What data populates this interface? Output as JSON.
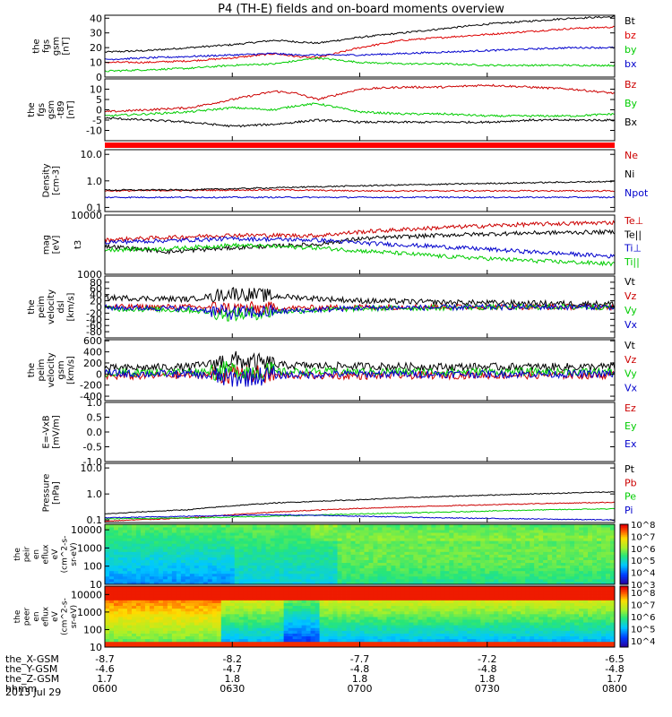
{
  "title": "P4 (TH-E) fields and on-board moments overview",
  "date_label": "2013 Jul 29",
  "chart_data": {
    "type": "line",
    "title": "P4 (TH-E) fields and on-board moments overview",
    "x": {
      "label": "hhmm",
      "ticks": [
        "0600",
        "0630",
        "0700",
        "0730",
        "0800"
      ],
      "range_minutes": [
        0,
        120
      ],
      "ephemeris": [
        {
          "label": "the_X-GSM",
          "values": [
            "-8.7",
            "-8.2",
            "-7.7",
            "-7.2",
            "-6.5"
          ]
        },
        {
          "label": "the_Y-GSM",
          "values": [
            "-4.6",
            "-4.7",
            "-4.8",
            "-4.8",
            "-4.8"
          ]
        },
        {
          "label": "the_Z-GSM",
          "values": [
            "1.7",
            "1.8",
            "1.8",
            "1.8",
            "1.7"
          ]
        }
      ]
    },
    "panels": [
      {
        "id": "fgs-gsm",
        "ylabel": [
          "the",
          "fgs",
          "gsm",
          "[nT]"
        ],
        "scale": "linear",
        "ylim": [
          0,
          42
        ],
        "ticks": [
          "0",
          "10",
          "20",
          "30",
          "40"
        ],
        "tick_values": [
          0,
          10,
          20,
          30,
          40
        ],
        "series": [
          {
            "name": "Bt",
            "color": "#000000",
            "t": [
              0,
              10,
              20,
              30,
              40,
              45,
              50,
              60,
              70,
              80,
              90,
              100,
              110,
              120
            ],
            "values": [
              17,
              18,
              20,
              22,
              25,
              24,
              23,
              27,
              30,
              33,
              36,
              38,
              40,
              41
            ]
          },
          {
            "name": "bz",
            "color": "#dd0000",
            "t": [
              0,
              10,
              20,
              30,
              40,
              45,
              50,
              60,
              70,
              80,
              90,
              100,
              110,
              120
            ],
            "values": [
              10,
              10,
              11,
              13,
              16,
              14,
              13,
              20,
              25,
              27,
              29,
              31,
              33,
              34
            ]
          },
          {
            "name": "by",
            "color": "#00cc00",
            "t": [
              0,
              10,
              20,
              30,
              40,
              45,
              50,
              60,
              70,
              80,
              90,
              100,
              110,
              120
            ],
            "values": [
              4,
              5,
              6,
              8,
              9,
              11,
              13,
              10,
              9,
              9,
              8,
              8,
              8,
              8
            ]
          },
          {
            "name": "bx",
            "color": "#0000cc",
            "t": [
              0,
              10,
              20,
              30,
              40,
              45,
              50,
              60,
              70,
              80,
              90,
              100,
              110,
              120
            ],
            "values": [
              12,
              13,
              14,
              15,
              16,
              15,
              15,
              15,
              16,
              17,
              18,
              19,
              20,
              20
            ]
          }
        ]
      },
      {
        "id": "fgs-gsm-t89",
        "ylabel": [
          "the",
          "fgs",
          "gsm",
          "-t89",
          "[nT]"
        ],
        "scale": "linear",
        "ylim": [
          -15,
          15
        ],
        "ticks": [
          "-10",
          "-5",
          "0",
          "5",
          "10"
        ],
        "tick_values": [
          -10,
          -5,
          0,
          5,
          10
        ],
        "series": [
          {
            "name": "Bz",
            "color": "#cc0000",
            "t": [
              0,
              10,
              20,
              30,
              40,
              45,
              50,
              60,
              70,
              80,
              90,
              100,
              110,
              120
            ],
            "values": [
              -1,
              0,
              1,
              5,
              9,
              8,
              5,
              10,
              11,
              11,
              12,
              11,
              10,
              8
            ]
          },
          {
            "name": "By",
            "color": "#00cc00",
            "t": [
              0,
              10,
              20,
              30,
              40,
              45,
              50,
              60,
              70,
              80,
              90,
              100,
              110,
              120
            ],
            "values": [
              -3,
              -2,
              -1,
              1,
              0,
              2,
              3,
              -1,
              -2,
              -2,
              -3,
              -3,
              -3,
              -2
            ]
          },
          {
            "name": "Bx",
            "color": "#000000",
            "t": [
              0,
              10,
              20,
              30,
              40,
              45,
              50,
              60,
              70,
              80,
              90,
              100,
              110,
              120
            ],
            "values": [
              -4,
              -5,
              -6,
              -8,
              -7,
              -6,
              -5,
              -6,
              -6,
              -6,
              -6,
              -5,
              -5,
              -5
            ]
          }
        ]
      },
      {
        "id": "density",
        "ylabel": [
          "Density",
          "[cm-3]"
        ],
        "scale": "log",
        "ylim": [
          0.07,
          15
        ],
        "ticks": [
          "0.1",
          "1.0",
          "10.0"
        ],
        "tick_values": [
          0.1,
          1.0,
          10.0
        ],
        "series": [
          {
            "name": "Ne",
            "color": "#cc0000",
            "t": [
              0,
              20,
              40,
              60,
              80,
              100,
              120
            ],
            "values": [
              0.42,
              0.44,
              0.46,
              0.42,
              0.42,
              0.42,
              0.42
            ]
          },
          {
            "name": "Ni",
            "color": "#000000",
            "t": [
              0,
              20,
              40,
              60,
              80,
              100,
              120
            ],
            "values": [
              0.45,
              0.46,
              0.55,
              0.65,
              0.75,
              0.85,
              0.95
            ]
          },
          {
            "name": "Npot",
            "color": "#0000cc",
            "t": [
              0,
              20,
              40,
              60,
              80,
              100,
              120
            ],
            "values": [
              0.24,
              0.24,
              0.24,
              0.24,
              0.24,
              0.24,
              0.24
            ]
          }
        ]
      },
      {
        "id": "temperature",
        "ylabel": [
          "mag",
          "[eV]"
        ],
        "ylabel_extra": "t3",
        "scale": "log",
        "ylim": [
          1000,
          10000
        ],
        "ticks": [
          "1000",
          "10000"
        ],
        "tick_values": [
          1000,
          10000
        ],
        "series": [
          {
            "name": "Te⊥",
            "color": "#cc0000",
            "t": [
              0,
              15,
              30,
              50,
              60,
              80,
              100,
              120
            ],
            "values": [
              3800,
              4200,
              4600,
              4500,
              5200,
              6200,
              7000,
              7500
            ]
          },
          {
            "name": "Te||",
            "color": "#000000",
            "t": [
              0,
              15,
              30,
              50,
              60,
              80,
              100,
              120
            ],
            "values": [
              3000,
              2400,
              2800,
              3200,
              4000,
              4600,
              5000,
              5200
            ]
          },
          {
            "name": "Ti⊥",
            "color": "#0000cc",
            "t": [
              0,
              15,
              30,
              50,
              60,
              80,
              100,
              120
            ],
            "values": [
              3500,
              3700,
              4000,
              3800,
              3400,
              2900,
              2400,
              2000
            ]
          },
          {
            "name": "Ti||",
            "color": "#00cc00",
            "t": [
              0,
              15,
              30,
              50,
              60,
              80,
              100,
              120
            ],
            "values": [
              2600,
              2700,
              3100,
              2800,
              2500,
              2000,
              1700,
              1500
            ]
          }
        ]
      },
      {
        "id": "velocity-dsl",
        "ylabel": [
          "the",
          "peim",
          "velocity",
          "dsl",
          "[km/s]"
        ],
        "scale": "linear",
        "ylim": [
          -100,
          100
        ],
        "ticks": [
          "-80",
          "-60",
          "-40",
          "-20",
          "0",
          "20",
          "40",
          "60",
          "80"
        ],
        "tick_values": [
          -80,
          -60,
          -40,
          -20,
          0,
          20,
          40,
          60,
          80
        ],
        "series": [
          {
            "name": "Vt",
            "color": "#000000",
            "t": [
              0,
              20,
              30,
              40,
              60,
              80,
              100,
              120
            ],
            "values": [
              30,
              25,
              45,
              35,
              20,
              15,
              12,
              10
            ]
          },
          {
            "name": "Vz",
            "color": "#cc0000",
            "t": [
              0,
              20,
              30,
              40,
              60,
              80,
              100,
              120
            ],
            "values": [
              0,
              0,
              -5,
              -5,
              0,
              0,
              0,
              0
            ]
          },
          {
            "name": "Vy",
            "color": "#00cc00",
            "t": [
              0,
              20,
              30,
              40,
              60,
              80,
              100,
              120
            ],
            "values": [
              -5,
              -10,
              -25,
              -15,
              -5,
              -2,
              0,
              0
            ]
          },
          {
            "name": "Vx",
            "color": "#0000cc",
            "t": [
              0,
              20,
              30,
              40,
              60,
              80,
              100,
              120
            ],
            "values": [
              -2,
              -5,
              -20,
              -15,
              -3,
              -2,
              0,
              0
            ]
          }
        ]
      },
      {
        "id": "velocity-gsm",
        "ylabel": [
          "the",
          "peim",
          "velocity",
          "gsm",
          "[km/s]"
        ],
        "scale": "linear",
        "ylim": [
          -480,
          620
        ],
        "ticks": [
          "-400",
          "-200",
          "0",
          "200",
          "400",
          "600"
        ],
        "tick_values": [
          -400,
          -200,
          0,
          200,
          400,
          600
        ],
        "series": [
          {
            "name": "Vt",
            "color": "#000000",
            "t": [
              0,
              20,
              30,
              40,
              60,
              80,
              100,
              120
            ],
            "values": [
              100,
              130,
              250,
              160,
              140,
              130,
              130,
              130
            ]
          },
          {
            "name": "Vz",
            "color": "#cc0000",
            "t": [
              0,
              20,
              30,
              40,
              60,
              80,
              100,
              120
            ],
            "values": [
              -40,
              -20,
              0,
              -20,
              -30,
              -20,
              -20,
              -20
            ]
          },
          {
            "name": "Vy",
            "color": "#00cc00",
            "t": [
              0,
              20,
              30,
              40,
              60,
              80,
              100,
              120
            ],
            "values": [
              20,
              40,
              60,
              40,
              40,
              40,
              40,
              40
            ]
          },
          {
            "name": "Vx",
            "color": "#0000cc",
            "t": [
              0,
              20,
              30,
              40,
              60,
              80,
              100,
              120
            ],
            "values": [
              10,
              0,
              -80,
              -20,
              0,
              0,
              0,
              0
            ]
          }
        ]
      },
      {
        "id": "efield",
        "ylabel": [
          "E=-VxB",
          "[mV/m]"
        ],
        "scale": "linear",
        "ylim": [
          -1,
          1
        ],
        "ticks": [
          "-1.0",
          "-0.5",
          "0.0",
          "0.5",
          "1.0"
        ],
        "tick_values": [
          -1,
          -0.5,
          0,
          0.5,
          1
        ],
        "series": [
          {
            "name": "Ez",
            "color": "#cc0000",
            "t": [],
            "values": []
          },
          {
            "name": "Ey",
            "color": "#00cc00",
            "t": [],
            "values": []
          },
          {
            "name": "Ex",
            "color": "#0000cc",
            "t": [],
            "values": []
          }
        ]
      },
      {
        "id": "pressure",
        "ylabel": [
          "Pressure",
          "[nPa]"
        ],
        "scale": "log",
        "ylim": [
          0.08,
          15
        ],
        "ticks": [
          "0.1",
          "1.0",
          "10.0"
        ],
        "tick_values": [
          0.1,
          1.0,
          10.0
        ],
        "series": [
          {
            "name": "Pt",
            "color": "#000000",
            "t": [
              0,
              20,
              40,
              60,
              80,
              100,
              120
            ],
            "values": [
              0.17,
              0.25,
              0.45,
              0.6,
              0.8,
              1.0,
              1.2
            ]
          },
          {
            "name": "Pb",
            "color": "#cc0000",
            "t": [
              0,
              20,
              40,
              60,
              80,
              100,
              120
            ],
            "values": [
              0.09,
              0.12,
              0.2,
              0.28,
              0.35,
              0.42,
              0.48
            ]
          },
          {
            "name": "Pe",
            "color": "#00cc00",
            "t": [
              0,
              20,
              40,
              60,
              80,
              100,
              120
            ],
            "values": [
              0.11,
              0.12,
              0.14,
              0.17,
              0.2,
              0.24,
              0.27
            ]
          },
          {
            "name": "Pi",
            "color": "#0000cc",
            "t": [
              0,
              20,
              40,
              60,
              80,
              100,
              120
            ],
            "values": [
              0.12,
              0.14,
              0.16,
              0.14,
              0.12,
              0.11,
              0.1
            ]
          }
        ]
      }
    ],
    "spectrograms": [
      {
        "id": "ion-energy-flux",
        "type": "heatmap",
        "ylabel": [
          "the",
          "peir",
          "en",
          "eflux",
          "eV",
          "(cm^2-s-",
          "sr-eV)"
        ],
        "scale": "log",
        "ylim": [
          10,
          20000
        ],
        "ticks": [
          "10",
          "100",
          "1000",
          "10000"
        ],
        "colorbar_ticks": [
          "10^3",
          "10^4",
          "10^5",
          "10^6",
          "10^7",
          "10^8"
        ],
        "colorbar_range": [
          3,
          8
        ]
      },
      {
        "id": "electron-energy-flux",
        "type": "heatmap",
        "ylabel": [
          "the",
          "peer",
          "en",
          "eflux",
          "eV",
          "(cm^2-s-",
          "sr-eV)"
        ],
        "scale": "log",
        "ylim": [
          10,
          30000
        ],
        "ticks": [
          "10",
          "100",
          "1000",
          "10000"
        ],
        "colorbar_ticks": [
          "10^4",
          "10^5",
          "10^6",
          "10^7",
          "10^8"
        ],
        "colorbar_range": [
          3.5,
          8.5
        ]
      }
    ]
  }
}
